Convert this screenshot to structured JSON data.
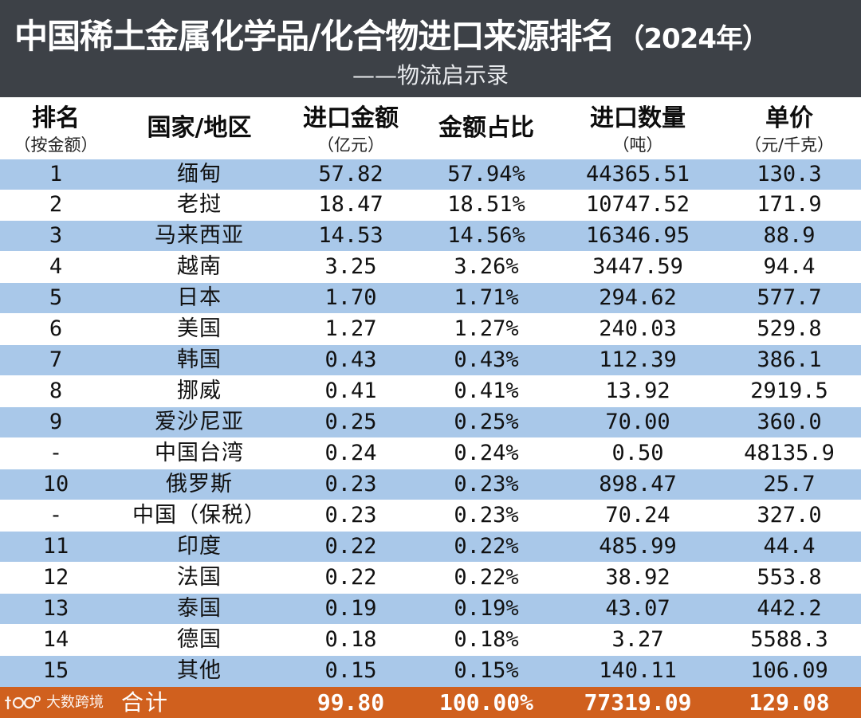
{
  "header": {
    "title": "中国稀土金属化学品/化合物进口来源排名",
    "title_year": "（2024年）",
    "subtitle": "——物流启示录"
  },
  "columns": {
    "rank": {
      "main": "排名",
      "sub": "（按金额）"
    },
    "country": {
      "main": "国家/地区"
    },
    "amount": {
      "main": "进口金额",
      "sub": "（亿元）"
    },
    "share": {
      "main": "金额占比"
    },
    "qty": {
      "main": "进口数量",
      "sub": "（吨）"
    },
    "price": {
      "main": "单价",
      "sub": "（元/千克）"
    }
  },
  "rows": [
    {
      "rank": "1",
      "country": "缅甸",
      "amount": "57.82",
      "share": "57.94%",
      "qty": "44365.51",
      "price": "130.3"
    },
    {
      "rank": "2",
      "country": "老挝",
      "amount": "18.47",
      "share": "18.51%",
      "qty": "10747.52",
      "price": "171.9"
    },
    {
      "rank": "3",
      "country": "马来西亚",
      "amount": "14.53",
      "share": "14.56%",
      "qty": "16346.95",
      "price": "88.9"
    },
    {
      "rank": "4",
      "country": "越南",
      "amount": "3.25",
      "share": "3.26%",
      "qty": "3447.59",
      "price": "94.4"
    },
    {
      "rank": "5",
      "country": "日本",
      "amount": "1.70",
      "share": "1.71%",
      "qty": "294.62",
      "price": "577.7"
    },
    {
      "rank": "6",
      "country": "美国",
      "amount": "1.27",
      "share": "1.27%",
      "qty": "240.03",
      "price": "529.8"
    },
    {
      "rank": "7",
      "country": "韩国",
      "amount": "0.43",
      "share": "0.43%",
      "qty": "112.39",
      "price": "386.1"
    },
    {
      "rank": "8",
      "country": "挪威",
      "amount": "0.41",
      "share": "0.41%",
      "qty": "13.92",
      "price": "2919.5"
    },
    {
      "rank": "9",
      "country": "爱沙尼亚",
      "amount": "0.25",
      "share": "0.25%",
      "qty": "70.00",
      "price": "360.0"
    },
    {
      "rank": "-",
      "country": "中国台湾",
      "amount": "0.24",
      "share": "0.24%",
      "qty": "0.50",
      "price": "48135.9"
    },
    {
      "rank": "10",
      "country": "俄罗斯",
      "amount": "0.23",
      "share": "0.23%",
      "qty": "898.47",
      "price": "25.7"
    },
    {
      "rank": "-",
      "country": "中国（保税）",
      "amount": "0.23",
      "share": "0.23%",
      "qty": "70.24",
      "price": "327.0"
    },
    {
      "rank": "11",
      "country": "印度",
      "amount": "0.22",
      "share": "0.22%",
      "qty": "485.99",
      "price": "44.4"
    },
    {
      "rank": "12",
      "country": "法国",
      "amount": "0.22",
      "share": "0.22%",
      "qty": "38.92",
      "price": "553.8"
    },
    {
      "rank": "13",
      "country": "泰国",
      "amount": "0.19",
      "share": "0.19%",
      "qty": "43.07",
      "price": "442.2"
    },
    {
      "rank": "14",
      "country": "德国",
      "amount": "0.18",
      "share": "0.18%",
      "qty": "3.27",
      "price": "5588.3"
    },
    {
      "rank": "15",
      "country": "其他",
      "amount": "0.15",
      "share": "0.15%",
      "qty": "140.11",
      "price": "106.09"
    }
  ],
  "footer": {
    "label": "合计",
    "amount": "99.80",
    "share": "100.00%",
    "qty": "77319.09",
    "price": "129.08"
  },
  "watermark": {
    "text": "大数跨境"
  },
  "colors": {
    "banner": "#3d4147",
    "row_alt": "#a9c8e9",
    "footer": "#d0601e"
  }
}
